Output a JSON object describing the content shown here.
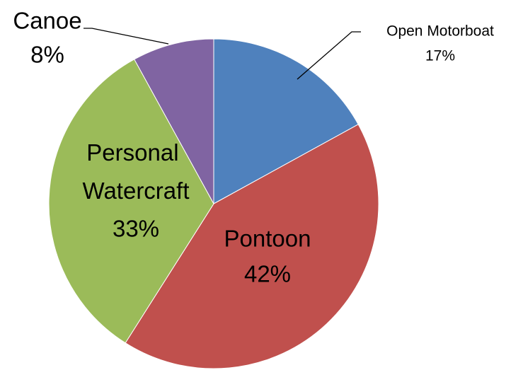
{
  "chart_data": {
    "type": "pie",
    "categories": [
      "Open Motorboat",
      "Pontoon",
      "Personal Watercraft",
      "Canoe"
    ],
    "values": [
      17,
      42,
      33,
      8
    ],
    "value_labels": [
      "17%",
      "42%",
      "33%",
      "8%"
    ],
    "colors": [
      "#4f81bd",
      "#c0504d",
      "#9bbb59",
      "#8064a2"
    ]
  }
}
